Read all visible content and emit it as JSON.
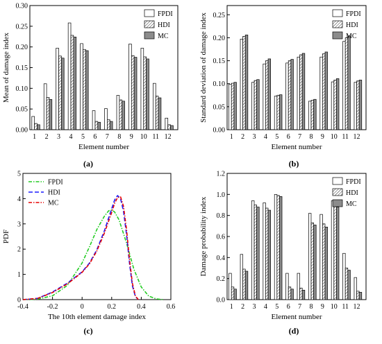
{
  "chart_data": [
    {
      "id": "a",
      "type": "bar",
      "panel_label": "(a)",
      "xlabel": "Element number",
      "ylabel": "Mean of damage index",
      "categories": [
        "1",
        "2",
        "3",
        "4",
        "5",
        "6",
        "7",
        "8",
        "9",
        "10",
        "11",
        "12"
      ],
      "ylim": [
        0,
        0.3
      ],
      "yticks": [
        "0.00",
        "0.05",
        "0.10",
        "0.15",
        "0.20",
        "0.25",
        "0.30"
      ],
      "legend_position": "top-right",
      "series": [
        {
          "name": "FPDI",
          "fill": "white",
          "values": [
            0.032,
            0.111,
            0.197,
            0.258,
            0.208,
            0.046,
            0.051,
            0.083,
            0.207,
            0.197,
            0.112,
            0.028
          ]
        },
        {
          "name": "HDI",
          "fill": "hatch",
          "values": [
            0.015,
            0.078,
            0.178,
            0.228,
            0.194,
            0.02,
            0.024,
            0.072,
            0.179,
            0.176,
            0.081,
            0.012
          ]
        },
        {
          "name": "MC",
          "fill": "gray",
          "values": [
            0.012,
            0.073,
            0.173,
            0.224,
            0.191,
            0.018,
            0.02,
            0.069,
            0.175,
            0.171,
            0.077,
            0.01
          ]
        }
      ]
    },
    {
      "id": "b",
      "type": "bar",
      "panel_label": "(b)",
      "xlabel": "Element number",
      "ylabel": "Standard deviation of damage index",
      "categories": [
        "1",
        "2",
        "3",
        "4",
        "5",
        "6",
        "7",
        "8",
        "9",
        "10",
        "11",
        "12"
      ],
      "ylim": [
        0,
        0.27
      ],
      "yticks": [
        "0.00",
        "0.05",
        "0.10",
        "0.15",
        "0.20",
        "0.25"
      ],
      "legend_position": "top-right",
      "series": [
        {
          "name": "FPDI",
          "fill": "white",
          "values": [
            0.099,
            0.197,
            0.103,
            0.143,
            0.073,
            0.145,
            0.158,
            0.062,
            0.158,
            0.104,
            0.192,
            0.103
          ]
        },
        {
          "name": "HDI",
          "fill": "hatch",
          "values": [
            0.101,
            0.203,
            0.107,
            0.15,
            0.075,
            0.15,
            0.163,
            0.064,
            0.165,
            0.108,
            0.2,
            0.106
          ]
        },
        {
          "name": "MC",
          "fill": "gray",
          "values": [
            0.103,
            0.206,
            0.109,
            0.154,
            0.076,
            0.153,
            0.166,
            0.066,
            0.169,
            0.111,
            0.204,
            0.108
          ]
        }
      ]
    },
    {
      "id": "c",
      "type": "line",
      "panel_label": "(c)",
      "xlabel": "The 10th element damage index",
      "ylabel": "PDF",
      "xlim": [
        -0.4,
        0.6
      ],
      "ylim": [
        0,
        5
      ],
      "xticks": [
        "-0.4",
        "-0.2",
        "0",
        "0.2",
        "0.4",
        "0.6"
      ],
      "yticks": [
        "0",
        "1",
        "2",
        "3",
        "4",
        "5"
      ],
      "legend_position": "top-left",
      "series": [
        {
          "name": "FPDI",
          "color": "#22cc22",
          "dash": "dash-dot",
          "x": [
            -0.4,
            -0.3,
            -0.2,
            -0.1,
            0.0,
            0.05,
            0.1,
            0.15,
            0.18,
            0.2,
            0.22,
            0.25,
            0.3,
            0.35,
            0.4,
            0.45,
            0.5,
            0.55
          ],
          "y": [
            0.0,
            0.02,
            0.15,
            0.56,
            1.45,
            2.1,
            2.78,
            3.3,
            3.52,
            3.55,
            3.47,
            3.15,
            2.25,
            1.2,
            0.5,
            0.14,
            0.03,
            0.0
          ]
        },
        {
          "name": "HDI",
          "color": "#1a1aff",
          "dash": "dash",
          "x": [
            -0.4,
            -0.3,
            -0.2,
            -0.1,
            0.0,
            0.05,
            0.1,
            0.15,
            0.2,
            0.22,
            0.24,
            0.26,
            0.28,
            0.3,
            0.32,
            0.34,
            0.36,
            0.38
          ],
          "y": [
            0.0,
            0.05,
            0.3,
            0.65,
            1.1,
            1.45,
            1.98,
            2.72,
            3.6,
            3.95,
            4.12,
            4.0,
            3.5,
            2.6,
            1.45,
            0.55,
            0.12,
            0.0
          ]
        },
        {
          "name": "MC",
          "color": "#e60000",
          "dash": "dash-dot",
          "x": [
            -0.4,
            -0.3,
            -0.2,
            -0.1,
            0.0,
            0.05,
            0.1,
            0.15,
            0.2,
            0.22,
            0.24,
            0.26,
            0.28,
            0.3,
            0.32,
            0.34,
            0.36,
            0.38
          ],
          "y": [
            0.0,
            0.05,
            0.28,
            0.62,
            1.08,
            1.42,
            1.93,
            2.63,
            3.45,
            3.82,
            4.05,
            4.07,
            3.7,
            2.8,
            1.6,
            0.65,
            0.15,
            0.0
          ]
        }
      ]
    },
    {
      "id": "d",
      "type": "bar",
      "panel_label": "(d)",
      "xlabel": "Element number",
      "ylabel": "Damage probability index",
      "categories": [
        "1",
        "2",
        "3",
        "4",
        "5",
        "6",
        "7",
        "8",
        "9",
        "10",
        "11",
        "12"
      ],
      "ylim": [
        0,
        1.2
      ],
      "yticks": [
        "0.0",
        "0.2",
        "0.4",
        "0.6",
        "0.8",
        "1.0",
        "1.2"
      ],
      "legend_position": "top-right",
      "series": [
        {
          "name": "FPDI",
          "fill": "white",
          "values": [
            0.25,
            0.43,
            0.94,
            0.92,
            1.0,
            0.25,
            0.25,
            0.82,
            0.81,
            0.94,
            0.44,
            0.21
          ]
        },
        {
          "name": "HDI",
          "fill": "hatch",
          "values": [
            0.12,
            0.29,
            0.9,
            0.87,
            0.99,
            0.12,
            0.11,
            0.73,
            0.72,
            0.91,
            0.3,
            0.08
          ]
        },
        {
          "name": "MC",
          "fill": "gray",
          "values": [
            0.1,
            0.27,
            0.88,
            0.85,
            0.98,
            0.1,
            0.09,
            0.71,
            0.69,
            0.88,
            0.28,
            0.07
          ]
        }
      ]
    }
  ]
}
